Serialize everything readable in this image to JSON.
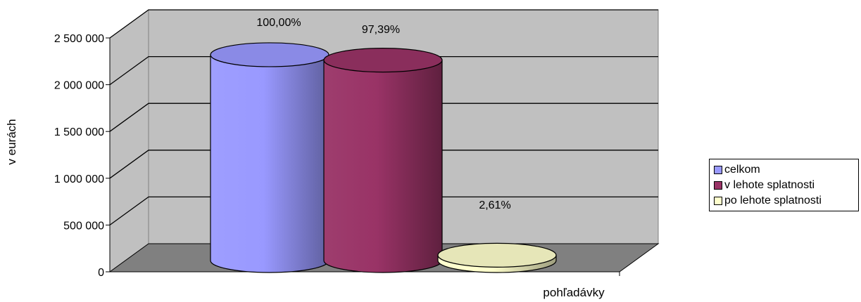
{
  "chart_data": {
    "type": "bar",
    "variant": "3d-cylinder",
    "xlabel": "pohľadávky",
    "ylabel": "v eurách",
    "ylim": [
      0,
      2500000
    ],
    "yticks": [
      {
        "value": 0,
        "label": "0"
      },
      {
        "value": 500000,
        "label": "500 000"
      },
      {
        "value": 1000000,
        "label": "1 000 000"
      },
      {
        "value": 1500000,
        "label": "1 500 000"
      },
      {
        "value": 2000000,
        "label": "2 000 000"
      },
      {
        "value": 2500000,
        "label": "2 500 000"
      }
    ],
    "grid": true,
    "legend_position": "right",
    "series": [
      {
        "name": "celkom",
        "value": 2200000,
        "label": "100,00%",
        "color": "#9999ff"
      },
      {
        "name": "v lehote splatnosti",
        "value": 2142500,
        "label": "97,39%",
        "color": "#993366"
      },
      {
        "name": "po lehote splatnosti",
        "value": 57500,
        "label": "2,61%",
        "color": "#ffffcc"
      }
    ]
  }
}
